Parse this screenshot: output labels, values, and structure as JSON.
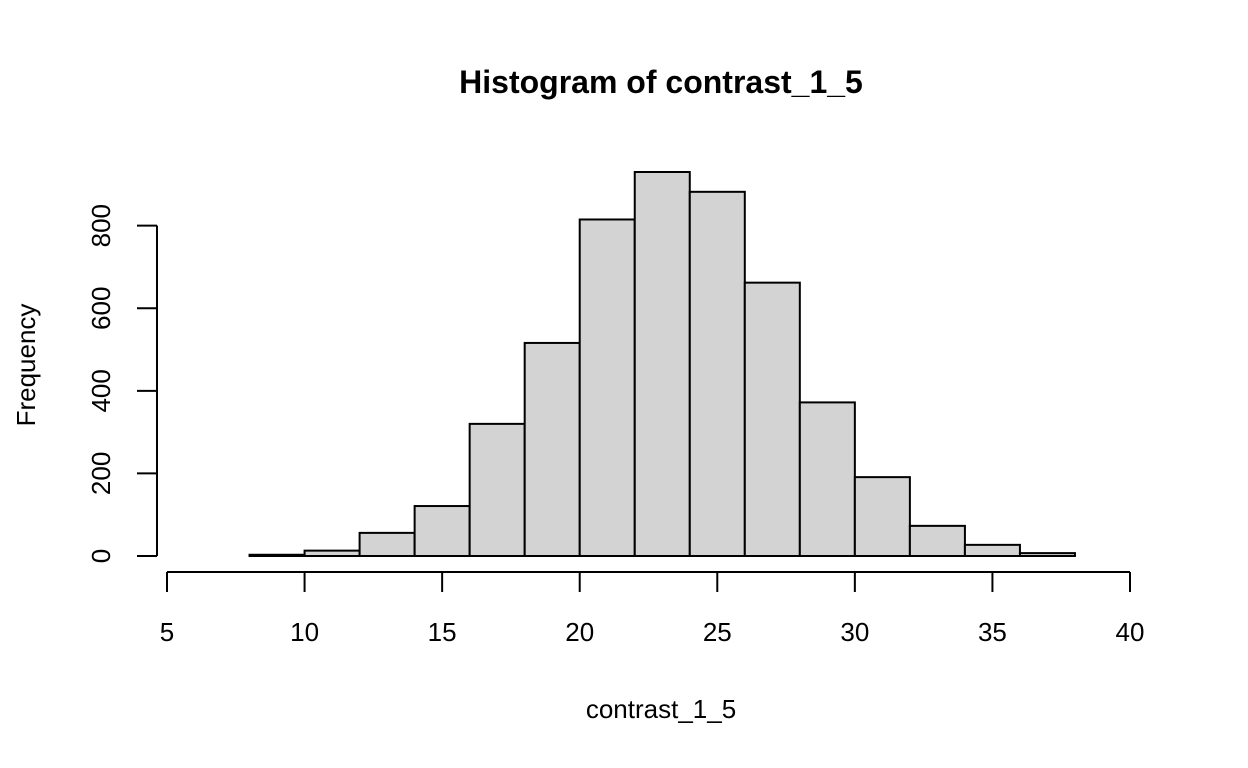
{
  "chart_data": {
    "type": "bar",
    "subtype": "histogram",
    "title": "Histogram of contrast_1_5",
    "xlabel": "contrast_1_5",
    "ylabel": "Frequency",
    "bin_edges": [
      6,
      8,
      10,
      12,
      14,
      16,
      18,
      20,
      22,
      24,
      26,
      28,
      30,
      32,
      34,
      36,
      38
    ],
    "values": [
      0,
      3,
      13,
      56,
      121,
      320,
      516,
      815,
      930,
      882,
      662,
      372,
      191,
      73,
      27,
      7
    ],
    "xlim": [
      5,
      40
    ],
    "ylim": [
      0,
      930
    ],
    "x_ticks": [
      5,
      10,
      15,
      20,
      25,
      30,
      35,
      40
    ],
    "y_ticks": [
      0,
      200,
      400,
      600,
      800
    ],
    "grid": false,
    "bar_fill": "#d3d3d3",
    "bar_stroke": "#000000"
  }
}
